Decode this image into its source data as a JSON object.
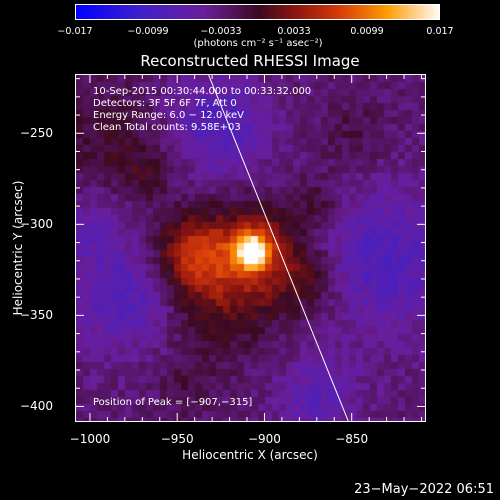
{
  "colorbar": {
    "tick_labels": [
      "−0.017",
      "−0.0099",
      "−0.0033",
      "0.0033",
      "0.0099",
      "0.017"
    ],
    "units": "(photons cm⁻² s⁻¹ asec⁻²)",
    "range": [
      -0.017,
      0.017
    ],
    "colors": [
      "#0000ff",
      "#5a1fb4",
      "#7a1e8c",
      "#9e1a1a",
      "#e8440a",
      "#ffb000",
      "#ffffff"
    ]
  },
  "chart_data": {
    "type": "heatmap",
    "title": "Reconstructed RHESSI Image",
    "xlabel": "Heliocentric X (arcsec)",
    "ylabel": "Heliocentric Y (arcsec)",
    "xlim": [
      -1008,
      -808
    ],
    "ylim": [
      -408,
      -218
    ],
    "x_ticks": [
      -1000,
      -950,
      -900,
      -850
    ],
    "y_ticks": [
      -250,
      -300,
      -350,
      -400
    ],
    "x_tick_labels": [
      "−1000",
      "−950",
      "−900",
      "−850"
    ],
    "y_tick_labels": [
      "−250",
      "−300",
      "−350",
      "−400"
    ],
    "info": [
      "10-Sep-2015 00:30:44.000 to 00:33:32.000",
      "Detectors: 3F 5F 6F 7F, Att 0",
      "Energy Range: 6.0 − 12.0 keV",
      "Clean     Total counts: 9.58E+03"
    ],
    "peak_label": "Position of Peak = [−907,−315]",
    "peak": {
      "x": -907,
      "y": -315
    },
    "limb_line": [
      [
        -932,
        -218
      ],
      [
        -852,
        -408
      ]
    ],
    "sources": [
      {
        "x": -907,
        "y": -315,
        "sigma": 6,
        "amp": 0.017
      },
      {
        "x": -905,
        "y": -313,
        "sigma": 16,
        "amp": 0.008
      },
      {
        "x": -940,
        "y": -316,
        "sigma": 15,
        "amp": 0.0085
      },
      {
        "x": -922,
        "y": -340,
        "sigma": 22,
        "amp": 0.005
      },
      {
        "x": -875,
        "y": -330,
        "sigma": 14,
        "amp": 0.004
      },
      {
        "x": -870,
        "y": -288,
        "sigma": 10,
        "amp": 0.003
      },
      {
        "x": -990,
        "y": -255,
        "sigma": 22,
        "amp": 0.003
      },
      {
        "x": -945,
        "y": -390,
        "sigma": 12,
        "amp": 0.002
      },
      {
        "x": -850,
        "y": -250,
        "sigma": 14,
        "amp": 0.002
      },
      {
        "x": -968,
        "y": -273,
        "sigma": 9,
        "amp": 0.0025
      }
    ],
    "negatives": [
      {
        "x": -925,
        "y": -245,
        "sigma": 18,
        "amp": -0.0055
      },
      {
        "x": -980,
        "y": -340,
        "sigma": 20,
        "amp": -0.005
      },
      {
        "x": -830,
        "y": -320,
        "sigma": 26,
        "amp": -0.0055
      },
      {
        "x": -870,
        "y": -395,
        "sigma": 16,
        "amp": -0.004
      },
      {
        "x": -1000,
        "y": -300,
        "sigma": 14,
        "amp": -0.003
      }
    ]
  },
  "timestamp": "23−May−2022 06:51"
}
